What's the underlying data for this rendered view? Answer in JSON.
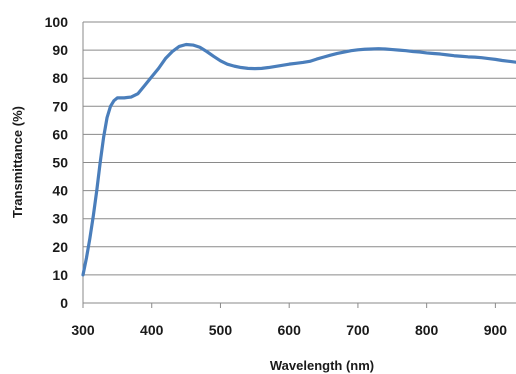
{
  "chart_data": {
    "type": "line",
    "title": "",
    "xlabel": "Wavelength (nm)",
    "ylabel": "Transmittance (%)",
    "xlim": [
      300,
      930
    ],
    "ylim": [
      0,
      100
    ],
    "xticks": [
      300,
      400,
      500,
      600,
      700,
      800,
      900
    ],
    "yticks": [
      0,
      10,
      20,
      30,
      40,
      50,
      60,
      70,
      80,
      90,
      100
    ],
    "xtick_labels": [
      "300",
      "400",
      "500",
      "600",
      "700",
      "800",
      "900"
    ],
    "ytick_labels": [
      "0",
      "10",
      "20",
      "30",
      "40",
      "50",
      "60",
      "70",
      "80",
      "90",
      "100"
    ],
    "grid": "horizontal",
    "legend": "none",
    "color": "#4a7ebb",
    "series": [
      {
        "x": [
          300,
          305,
          310,
          315,
          320,
          325,
          330,
          335,
          340,
          345,
          350,
          355,
          360,
          370,
          380,
          390,
          400,
          410,
          420,
          430,
          440,
          450,
          460,
          470,
          480,
          490,
          500,
          510,
          520,
          530,
          540,
          550,
          560,
          570,
          580,
          590,
          600,
          610,
          620,
          630,
          640,
          650,
          660,
          670,
          680,
          690,
          700,
          710,
          720,
          730,
          740,
          750,
          760,
          770,
          780,
          790,
          800,
          810,
          820,
          830,
          840,
          850,
          860,
          870,
          880,
          890,
          900,
          910,
          920,
          930
        ],
        "y": [
          10,
          16,
          23,
          31,
          40,
          50,
          59,
          66,
          70,
          72,
          73,
          73,
          73,
          73.3,
          74.5,
          77.5,
          80.5,
          83.5,
          87,
          89.5,
          91.3,
          92,
          91.8,
          91,
          89.5,
          87.8,
          86.2,
          85,
          84.3,
          83.8,
          83.5,
          83.4,
          83.5,
          83.8,
          84.2,
          84.6,
          85,
          85.3,
          85.6,
          86,
          86.8,
          87.5,
          88.2,
          88.8,
          89.3,
          89.8,
          90.1,
          90.3,
          90.4,
          90.5,
          90.4,
          90.2,
          90,
          89.8,
          89.5,
          89.3,
          89,
          88.8,
          88.6,
          88.3,
          88,
          87.8,
          87.6,
          87.5,
          87.3,
          87,
          86.7,
          86.3,
          86,
          85.7
        ]
      }
    ]
  }
}
